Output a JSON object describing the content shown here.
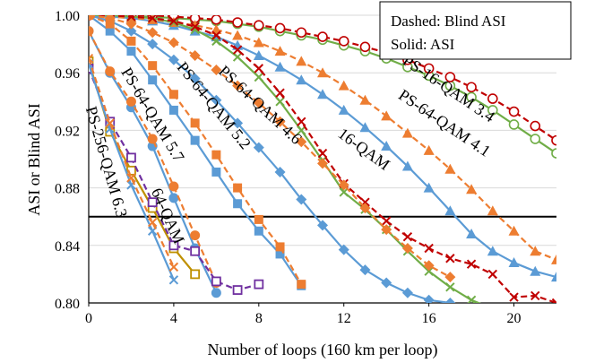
{
  "chart_data": {
    "type": "line",
    "title": "",
    "xlabel": "Number of loops (160 km per loop)",
    "ylabel": "ASI or Blind ASI",
    "xlim": [
      0,
      22
    ],
    "ylim": [
      0.8,
      1.0
    ],
    "xticks": [
      "0",
      "4",
      "8",
      "12",
      "16",
      "20"
    ],
    "yticks": [
      "0.80",
      "0.84",
      "0.88",
      "0.92",
      "0.96",
      "1.00"
    ],
    "grid": "horizontal",
    "threshold": 0.86,
    "legend": {
      "position": "top-right",
      "lines": [
        "Dashed: Blind ASI",
        "Solid: ASI"
      ]
    },
    "colors": {
      "ps_blue": "#5b9bd5",
      "ps_orange": "#ed7d31",
      "qam16_green": "#70ad47",
      "qam16_red": "#c00000",
      "qam64_purple": "#7030a0",
      "qam64_gold": "#bf9000"
    },
    "annotations": [
      {
        "text": "PS-16-QAM 3.4",
        "x": 16.8,
        "y": 0.946,
        "angle": 34
      },
      {
        "text": "PS-64-QAM 4.1",
        "x": 16.6,
        "y": 0.922,
        "angle": 34
      },
      {
        "text": "16-QAM",
        "x": 12.8,
        "y": 0.904,
        "angle": 36
      },
      {
        "text": "PS-64-QAM 4.6",
        "x": 7.9,
        "y": 0.935,
        "angle": 43
      },
      {
        "text": "PS-64-QAM 5.2",
        "x": 5.7,
        "y": 0.935,
        "angle": 51
      },
      {
        "text": "PS-64-QAM 5.7",
        "x": 2.8,
        "y": 0.929,
        "angle": 59
      },
      {
        "text": "PS-256-QAM 6.3",
        "x": 0.6,
        "y": 0.897,
        "angle": 74
      },
      {
        "text": "64-QAM",
        "x": 3.5,
        "y": 0.859,
        "angle": 66
      }
    ],
    "series": [
      {
        "key": "ps163_asi",
        "style": "solid",
        "color": "#70ad47",
        "marker": "circle-open",
        "x": [
          0,
          1,
          2,
          3,
          4,
          5,
          6,
          7,
          8,
          9,
          10,
          11,
          12,
          13,
          14,
          15,
          16,
          17,
          18,
          19,
          20,
          21,
          22
        ],
        "y": [
          1.0,
          1.0,
          0.999,
          0.999,
          0.998,
          0.997,
          0.996,
          0.994,
          0.992,
          0.989,
          0.986,
          0.983,
          0.979,
          0.975,
          0.97,
          0.964,
          0.958,
          0.951,
          0.943,
          0.934,
          0.924,
          0.914,
          0.904
        ]
      },
      {
        "key": "ps163_blind",
        "style": "dashed",
        "color": "#c00000",
        "marker": "circle-open",
        "x": [
          0,
          1,
          2,
          3,
          4,
          5,
          6,
          7,
          8,
          9,
          10,
          11,
          12,
          13,
          14,
          15,
          16,
          17,
          18,
          19,
          20,
          21,
          22
        ],
        "y": [
          1.0,
          1.0,
          1.0,
          1.0,
          0.999,
          0.998,
          0.997,
          0.995,
          0.993,
          0.991,
          0.988,
          0.985,
          0.982,
          0.978,
          0.974,
          0.969,
          0.963,
          0.957,
          0.95,
          0.942,
          0.933,
          0.923,
          0.913
        ]
      },
      {
        "key": "ps641_asi",
        "style": "solid",
        "color": "#5b9bd5",
        "marker": "triangle",
        "x": [
          0,
          1,
          2,
          3,
          4,
          5,
          6,
          7,
          8,
          9,
          10,
          11,
          12,
          13,
          14,
          15,
          16,
          17,
          18,
          19,
          20,
          21,
          22
        ],
        "y": [
          1.0,
          0.999,
          0.998,
          0.996,
          0.993,
          0.989,
          0.985,
          0.979,
          0.972,
          0.964,
          0.955,
          0.945,
          0.934,
          0.922,
          0.909,
          0.895,
          0.88,
          0.864,
          0.848,
          0.836,
          0.828,
          0.822,
          0.818
        ]
      },
      {
        "key": "ps641_blind",
        "style": "dashed",
        "color": "#ed7d31",
        "marker": "triangle",
        "x": [
          0,
          1,
          2,
          3,
          4,
          5,
          6,
          7,
          8,
          9,
          10,
          11,
          12,
          13,
          14,
          15,
          16,
          17,
          18,
          19,
          20,
          21,
          22
        ],
        "y": [
          1.0,
          0.999,
          0.998,
          0.997,
          0.995,
          0.993,
          0.99,
          0.986,
          0.981,
          0.975,
          0.968,
          0.96,
          0.951,
          0.941,
          0.93,
          0.918,
          0.906,
          0.893,
          0.879,
          0.864,
          0.85,
          0.836,
          0.83
        ]
      },
      {
        "key": "qam16_asi",
        "style": "solid",
        "color": "#70ad47",
        "marker": "x",
        "x": [
          0,
          1,
          2,
          3,
          4,
          5,
          6,
          7,
          8,
          9,
          10,
          11,
          12,
          13,
          14,
          15,
          16,
          17,
          18,
          19,
          20
        ],
        "y": [
          1.0,
          1.0,
          0.999,
          0.998,
          0.995,
          0.99,
          0.982,
          0.971,
          0.957,
          0.94,
          0.92,
          0.899,
          0.877,
          0.865,
          0.851,
          0.836,
          0.822,
          0.811,
          0.802,
          0.796,
          0.791
        ]
      },
      {
        "key": "qam16_blind",
        "style": "dashed",
        "color": "#c00000",
        "marker": "x",
        "x": [
          0,
          1,
          2,
          3,
          4,
          5,
          6,
          7,
          8,
          9,
          10,
          11,
          12,
          13,
          14,
          15,
          16,
          17,
          18,
          19,
          20,
          21,
          22
        ],
        "y": [
          1.0,
          1.0,
          0.999,
          0.998,
          0.996,
          0.992,
          0.986,
          0.976,
          0.963,
          0.946,
          0.926,
          0.904,
          0.883,
          0.87,
          0.857,
          0.846,
          0.838,
          0.831,
          0.827,
          0.82,
          0.804,
          0.805,
          0.8
        ]
      },
      {
        "key": "ps646_asi",
        "style": "solid",
        "color": "#5b9bd5",
        "marker": "diamond",
        "x": [
          0,
          1,
          2,
          3,
          4,
          5,
          6,
          7,
          8,
          9,
          10,
          11,
          12,
          13,
          14,
          15,
          16,
          17
        ],
        "y": [
          1.0,
          0.996,
          0.989,
          0.98,
          0.969,
          0.956,
          0.941,
          0.925,
          0.908,
          0.891,
          0.872,
          0.854,
          0.837,
          0.823,
          0.814,
          0.807,
          0.802,
          0.8
        ]
      },
      {
        "key": "ps646_blind",
        "style": "dashed",
        "color": "#ed7d31",
        "marker": "diamond",
        "x": [
          0,
          1,
          2,
          3,
          4,
          5,
          6,
          7,
          8,
          9,
          10,
          11,
          12,
          13,
          14,
          15,
          16,
          17
        ],
        "y": [
          1.0,
          0.998,
          0.994,
          0.988,
          0.981,
          0.972,
          0.962,
          0.951,
          0.939,
          0.926,
          0.912,
          0.897,
          0.882,
          0.866,
          0.851,
          0.838,
          0.826,
          0.818
        ]
      },
      {
        "key": "ps652_asi",
        "style": "solid",
        "color": "#5b9bd5",
        "marker": "square",
        "x": [
          0,
          1,
          2,
          3,
          4,
          5,
          6,
          7,
          8,
          9,
          10
        ],
        "y": [
          1.0,
          0.989,
          0.975,
          0.955,
          0.934,
          0.913,
          0.891,
          0.869,
          0.85,
          0.834,
          0.812
        ]
      },
      {
        "key": "ps652_blind",
        "style": "dashed",
        "color": "#ed7d31",
        "marker": "square",
        "x": [
          0,
          1,
          2,
          3,
          4,
          5,
          6,
          7,
          8,
          9,
          10
        ],
        "y": [
          1.0,
          0.994,
          0.982,
          0.965,
          0.945,
          0.925,
          0.903,
          0.88,
          0.858,
          0.839,
          0.813
        ]
      },
      {
        "key": "ps657_asi",
        "style": "solid",
        "color": "#5b9bd5",
        "marker": "circle",
        "x": [
          0,
          1,
          2,
          3,
          4,
          5,
          6
        ],
        "y": [
          0.989,
          0.96,
          0.936,
          0.909,
          0.873,
          0.838,
          0.807
        ]
      },
      {
        "key": "ps657_blind",
        "style": "dashed",
        "color": "#ed7d31",
        "marker": "circle",
        "x": [
          0,
          1,
          2,
          3,
          4,
          5,
          6
        ],
        "y": [
          0.989,
          0.961,
          0.94,
          0.914,
          0.881,
          0.847,
          0.814
        ]
      },
      {
        "key": "ps2563_asi",
        "style": "solid",
        "color": "#bf9000",
        "marker": "square-open",
        "x": [
          0,
          1,
          2,
          3,
          4,
          5
        ],
        "y": [
          0.968,
          0.919,
          0.892,
          0.866,
          0.838,
          0.82
        ]
      },
      {
        "key": "ps2563_blind",
        "style": "dashed",
        "color": "#7030a0",
        "marker": "square-open",
        "x": [
          0,
          1,
          2,
          3,
          4,
          5,
          6,
          7,
          8
        ],
        "y": [
          0.963,
          0.926,
          0.901,
          0.87,
          0.84,
          0.836,
          0.815,
          0.809,
          0.813
        ]
      },
      {
        "key": "qam64_asi",
        "style": "solid",
        "color": "#5b9bd5",
        "marker": "x",
        "x": [
          0,
          1,
          2,
          3,
          4
        ],
        "y": [
          0.966,
          0.921,
          0.882,
          0.85,
          0.816
        ]
      },
      {
        "key": "qam64_blind",
        "style": "dashed",
        "color": "#ed7d31",
        "marker": "x",
        "x": [
          0,
          1,
          2,
          3,
          4
        ],
        "y": [
          0.97,
          0.925,
          0.887,
          0.856,
          0.825
        ]
      }
    ]
  }
}
